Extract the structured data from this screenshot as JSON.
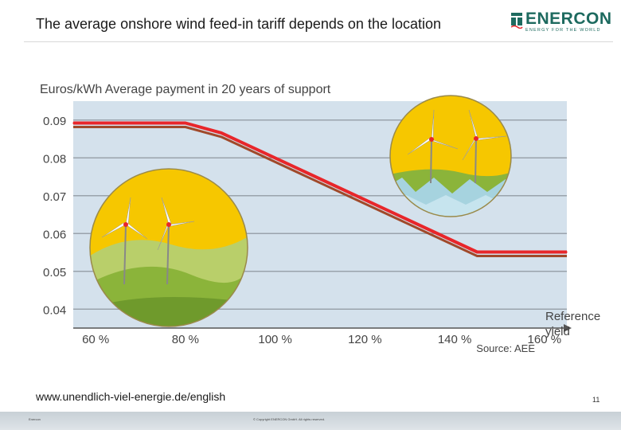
{
  "header": {
    "title": "The average onshore wind feed-in tariff depends on the location",
    "logo_text": "ENERCON",
    "logo_tagline": "ENERGY FOR THE WORLD",
    "brand_color": "#1d6a5f"
  },
  "chart_data": {
    "type": "line",
    "title": "Euros/kWh Average payment in 20 years of support",
    "xlabel": "Reference yield",
    "ylabel": "Euros/kWh",
    "source": "Source: AEE",
    "x_ticks": [
      "60 %",
      "80 %",
      "100 %",
      "120 %",
      "140 %",
      "160 %"
    ],
    "y_ticks": [
      "0.09",
      "0.08",
      "0.07",
      "0.06",
      "0.05",
      "0.04"
    ],
    "xlim": [
      55,
      165
    ],
    "ylim": [
      0.035,
      0.095
    ],
    "series": [
      {
        "x": [
          55,
          80,
          88,
          145,
          165
        ],
        "y": [
          0.0892,
          0.0892,
          0.0866,
          0.0551,
          0.0551
        ],
        "color": "#e8262a"
      }
    ],
    "grid": true,
    "colors": {
      "background": "#d4e1ec",
      "grid": "#9aa3ac",
      "line": "#e8262a",
      "line_shadow": "#a0492a",
      "sky": "#f6c700",
      "hills": "#8bb43a"
    }
  },
  "footer": {
    "url": "www.unendlich-viel-energie.de/english",
    "page_number": "11",
    "left_text": "Enercon",
    "copyright": "© Copyright ENERCON GmbH. All rights reserved."
  }
}
